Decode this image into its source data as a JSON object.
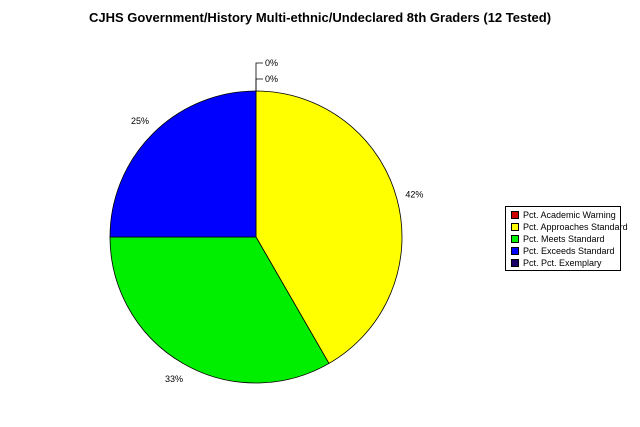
{
  "chart_data": {
    "type": "pie",
    "title": "CJHS Government/History Multi-ethnic/Undeclared 8th Graders (12 Tested)",
    "slices": [
      {
        "label": "Pct. Academic Warning",
        "value": 0,
        "value_label": "0%",
        "color": "#cc0000"
      },
      {
        "label": "Pct. Approaches Standard",
        "value": 41.67,
        "value_label": "42%",
        "color": "#ffff00"
      },
      {
        "label": "Pct. Meets Standard",
        "value": 33.33,
        "value_label": "33%",
        "color": "#00ee00"
      },
      {
        "label": "Pct. Exceeds Standard",
        "value": 25,
        "value_label": "25%",
        "color": "#0000ff"
      },
      {
        "label": "Pct. Pct. Exemplary",
        "value": 0,
        "value_label": "0%",
        "color": "#1a0066"
      }
    ],
    "legend_position": "right"
  }
}
